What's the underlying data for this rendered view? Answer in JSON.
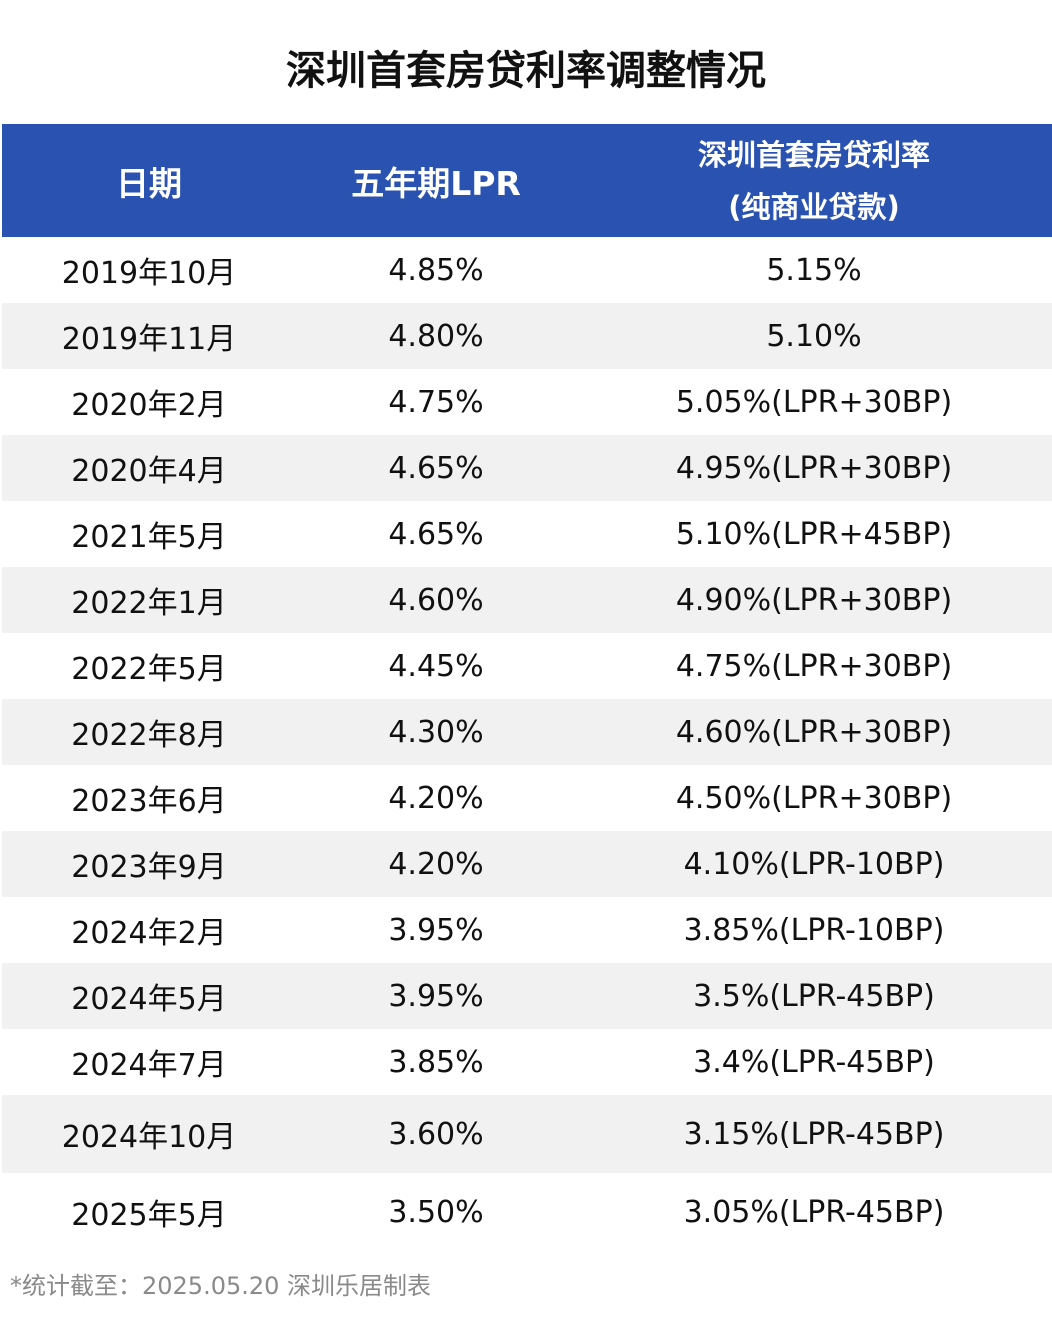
{
  "title": "深圳首套房贷利率调整情况",
  "chart_data": {
    "type": "table",
    "columns": [
      "日期",
      "五年期LPR",
      "深圳首套房贷利率",
      "(纯商业贷款)"
    ],
    "rows": [
      [
        "2019年10月",
        "4.85%",
        "5.15%"
      ],
      [
        "2019年11月",
        "4.80%",
        "5.10%"
      ],
      [
        "2020年2月",
        "4.75%",
        "5.05%(LPR+30BP)"
      ],
      [
        "2020年4月",
        "4.65%",
        "4.95%(LPR+30BP)"
      ],
      [
        "2021年5月",
        "4.65%",
        "5.10%(LPR+45BP)"
      ],
      [
        "2022年1月",
        "4.60%",
        "4.90%(LPR+30BP)"
      ],
      [
        "2022年5月",
        "4.45%",
        "4.75%(LPR+30BP)"
      ],
      [
        "2022年8月",
        "4.30%",
        "4.60%(LPR+30BP)"
      ],
      [
        "2023年6月",
        "4.20%",
        "4.50%(LPR+30BP)"
      ],
      [
        "2023年9月",
        "4.20%",
        "4.10%(LPR-10BP)"
      ],
      [
        "2024年2月",
        "3.95%",
        "3.85%(LPR-10BP)"
      ],
      [
        "2024年5月",
        "3.95%",
        "3.5%(LPR-45BP)"
      ],
      [
        "2024年7月",
        "3.85%",
        "3.4%(LPR-45BP)"
      ],
      [
        "2024年10月",
        "3.60%",
        "3.15%(LPR-45BP)"
      ],
      [
        "2025年5月",
        "3.50%",
        "3.05%(LPR-45BP)"
      ]
    ],
    "header_color": "#2a52b0",
    "stripe_color": "#f1f1f1"
  },
  "footer": "*统计截至：2025.05.20  深圳乐居制表"
}
